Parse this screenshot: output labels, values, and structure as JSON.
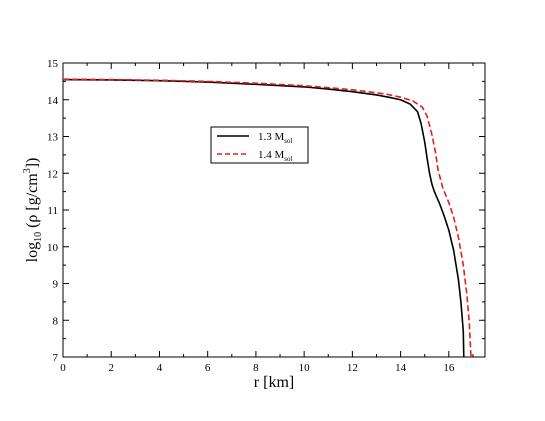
{
  "chart_data": {
    "type": "line",
    "xlabel": "r [km]",
    "ylabel": {
      "prefix": "log",
      "sub": "10",
      "middle": " (ρ  [g/cm",
      "sup": "3",
      "suffix": "])"
    },
    "xlim": [
      0,
      17.5
    ],
    "ylim": [
      7,
      15
    ],
    "xticks": [
      0,
      2,
      4,
      6,
      8,
      10,
      12,
      14,
      16
    ],
    "yticks": [
      7,
      8,
      9,
      10,
      11,
      12,
      13,
      14,
      15
    ],
    "xtick_labels": [
      "0",
      "2",
      "4",
      "6",
      "8",
      "10",
      "12",
      "14",
      "16"
    ],
    "ytick_labels": [
      "7",
      "8",
      "9",
      "10",
      "11",
      "12",
      "13",
      "14",
      "15"
    ],
    "grid": false,
    "legend_position": "upper-center",
    "series": [
      {
        "label_main": "1.3 M",
        "label_sub": "sol",
        "color": "#000000",
        "dash": "solid",
        "x": [
          0,
          2,
          4,
          6,
          8,
          10,
          11,
          12,
          13,
          13.5,
          14,
          14.4,
          14.7,
          14.85,
          15.0,
          15.1,
          15.2,
          15.3,
          15.4,
          15.6,
          15.8,
          16.0,
          16.2,
          16.4,
          16.5,
          16.6,
          16.62
        ],
        "y": [
          14.55,
          14.54,
          14.52,
          14.48,
          14.42,
          14.35,
          14.29,
          14.22,
          14.13,
          14.07,
          14.0,
          13.88,
          13.68,
          13.35,
          12.85,
          12.4,
          12.0,
          11.7,
          11.5,
          11.2,
          10.85,
          10.45,
          9.9,
          9.1,
          8.5,
          7.7,
          7.0
        ]
      },
      {
        "label_main": "1.4 M",
        "label_sub": "sol",
        "color": "#e02020",
        "dash": "dashed",
        "x": [
          0,
          2,
          4,
          6,
          8,
          10,
          11,
          12,
          13,
          13.5,
          14,
          14.5,
          14.9,
          15.1,
          15.3,
          15.45,
          15.55,
          15.65,
          15.75,
          16.0,
          16.2,
          16.4,
          16.6,
          16.75,
          16.85,
          16.92
        ],
        "y": [
          14.56,
          14.55,
          14.53,
          14.5,
          14.45,
          14.38,
          14.33,
          14.27,
          14.19,
          14.14,
          14.07,
          13.97,
          13.8,
          13.55,
          13.05,
          12.55,
          12.1,
          11.85,
          11.6,
          11.2,
          10.8,
          10.25,
          9.5,
          8.7,
          7.9,
          7.0
        ]
      }
    ]
  }
}
